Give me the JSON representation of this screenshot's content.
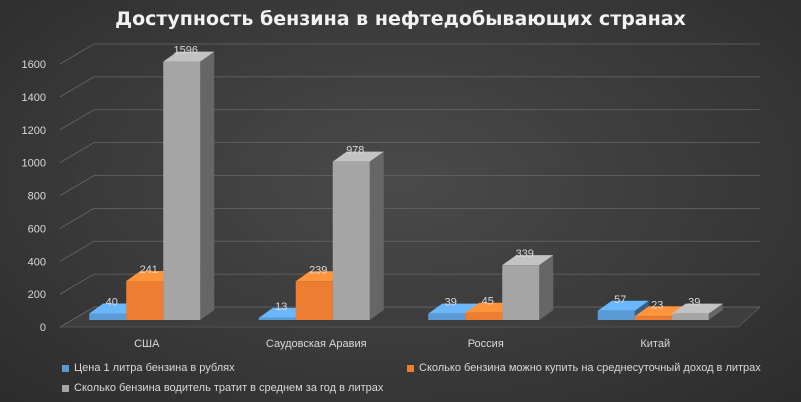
{
  "chart_data": {
    "type": "bar",
    "title": "Доступность бензина в нефтедобывающих странах",
    "categories": [
      "США",
      "Саудовская Аравия",
      "Россия",
      "Китай"
    ],
    "series": [
      {
        "name": "Цена 1 литра бензина в рублях",
        "values": [
          40,
          13,
          39,
          57
        ],
        "color": "#5b9bd5"
      },
      {
        "name": "Сколько бензина можно купить на среднесуточный доход в литрах",
        "values": [
          241,
          239,
          45,
          23
        ],
        "color": "#ed7d31"
      },
      {
        "name": "Сколько бензина водитель тратит в среднем за год в литрах",
        "values": [
          1596,
          978,
          339,
          39
        ],
        "color": "#a5a5a5"
      }
    ],
    "y_ticks": [
      0,
      200,
      400,
      600,
      800,
      1000,
      1200,
      1400,
      1600
    ],
    "ylim": [
      0,
      1600
    ],
    "grid": true,
    "legend_position": "bottom",
    "style": "3d-clustered-column"
  }
}
